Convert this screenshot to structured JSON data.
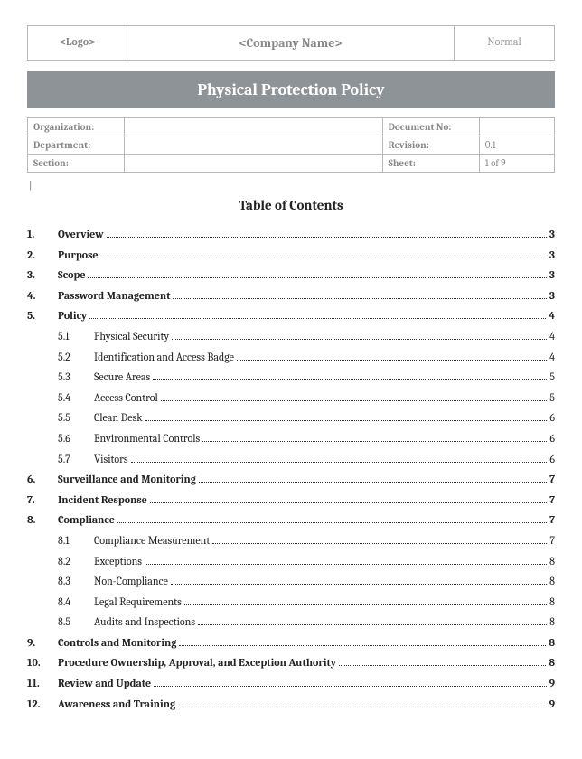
{
  "header": {
    "logo_placeholder": "<Logo>",
    "company_placeholder": "<Company Name>",
    "style_label": "Normal"
  },
  "title_bar": "Physical Protection Policy",
  "meta": {
    "rows": [
      {
        "label1": "Organization:",
        "val1": "",
        "label2": "Document No:",
        "val2": ""
      },
      {
        "label1": "Department:",
        "val1": "",
        "label2": "Revision:",
        "val2": "0.1"
      },
      {
        "label1": "Section:",
        "val1": "",
        "label2": "Sheet:",
        "val2": "1 of 9"
      }
    ]
  },
  "cursor": "|",
  "toc_heading": "Table of Contents",
  "toc": [
    {
      "num": "1.",
      "title": "Overview",
      "page": "3"
    },
    {
      "num": "2.",
      "title": "Purpose",
      "page": "3"
    },
    {
      "num": "3.",
      "title": "Scope",
      "page": "3"
    },
    {
      "num": "4.",
      "title": "Password Management",
      "page": "3"
    },
    {
      "num": "5.",
      "title": "Policy",
      "page": "4",
      "children": [
        {
          "num": "5.1",
          "title": "Physical Security",
          "page": "4"
        },
        {
          "num": "5.2",
          "title": "Identification and Access Badge",
          "page": "4"
        },
        {
          "num": "5.3",
          "title": "Secure Areas",
          "page": "5"
        },
        {
          "num": "5.4",
          "title": "Access Control",
          "page": "5"
        },
        {
          "num": "5.5",
          "title": "Clean Desk",
          "page": "6"
        },
        {
          "num": "5.6",
          "title": "Environmental Controls",
          "page": "6"
        },
        {
          "num": "5.7",
          "title": "Visitors",
          "page": "6"
        }
      ]
    },
    {
      "num": "6.",
      "title": "Surveillance and Monitoring",
      "page": "7"
    },
    {
      "num": "7.",
      "title": "Incident Response",
      "page": "7"
    },
    {
      "num": "8.",
      "title": "Compliance",
      "page": "7",
      "children": [
        {
          "num": "8.1",
          "title": "Compliance Measurement",
          "page": "7"
        },
        {
          "num": "8.2",
          "title": "Exceptions",
          "page": "8"
        },
        {
          "num": "8.3",
          "title": "Non-Compliance",
          "page": "8"
        },
        {
          "num": "8.4",
          "title": "Legal Requirements",
          "page": "8"
        },
        {
          "num": "8.5",
          "title": "Audits and Inspections",
          "page": "8"
        }
      ]
    },
    {
      "num": "9.",
      "title": "Controls and Monitoring",
      "page": "8"
    },
    {
      "num": "10.",
      "title": "Procedure Ownership, Approval, and Exception Authority",
      "page": "8"
    },
    {
      "num": "11.",
      "title": "Review and Update",
      "page": "9"
    },
    {
      "num": "12.",
      "title": "Awareness and Training",
      "page": "9"
    }
  ]
}
